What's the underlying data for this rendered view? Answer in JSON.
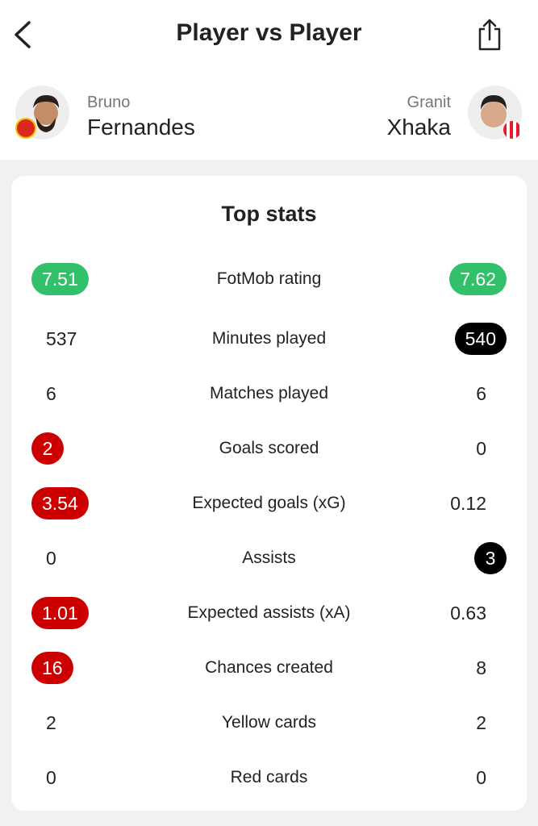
{
  "header": {
    "title": "Player vs Player",
    "back_icon": "chevron-left-icon",
    "share_icon": "share-icon"
  },
  "players": {
    "left": {
      "first_name": "Bruno",
      "last_name": "Fernandes",
      "club_color": "#da291c"
    },
    "right": {
      "first_name": "Granit",
      "last_name": "Xhaka",
      "club_color": "#eb172b"
    }
  },
  "colors": {
    "better": "#33c06a",
    "leader": "#cc0000",
    "leader_right": "#000000"
  },
  "card": {
    "title": "Top stats"
  },
  "stats": [
    {
      "label": "FotMob rating",
      "left": "7.51",
      "left_style": "green",
      "right": "7.62",
      "right_style": "green"
    },
    {
      "label": "Minutes played",
      "left": "537",
      "left_style": "",
      "right": "540",
      "right_style": "black"
    },
    {
      "label": "Matches played",
      "left": "6",
      "left_style": "",
      "right": "6",
      "right_style": ""
    },
    {
      "label": "Goals scored",
      "left": "2",
      "left_style": "red",
      "right": "0",
      "right_style": ""
    },
    {
      "label": "Expected goals (xG)",
      "left": "3.54",
      "left_style": "red",
      "right": "0.12",
      "right_style": ""
    },
    {
      "label": "Assists",
      "left": "0",
      "left_style": "",
      "right": "3",
      "right_style": "black"
    },
    {
      "label": "Expected assists (xA)",
      "left": "1.01",
      "left_style": "red",
      "right": "0.63",
      "right_style": ""
    },
    {
      "label": "Chances created",
      "left": "16",
      "left_style": "red",
      "right": "8",
      "right_style": ""
    },
    {
      "label": "Yellow cards",
      "left": "2",
      "left_style": "",
      "right": "2",
      "right_style": ""
    },
    {
      "label": "Red cards",
      "left": "0",
      "left_style": "",
      "right": "0",
      "right_style": ""
    }
  ]
}
